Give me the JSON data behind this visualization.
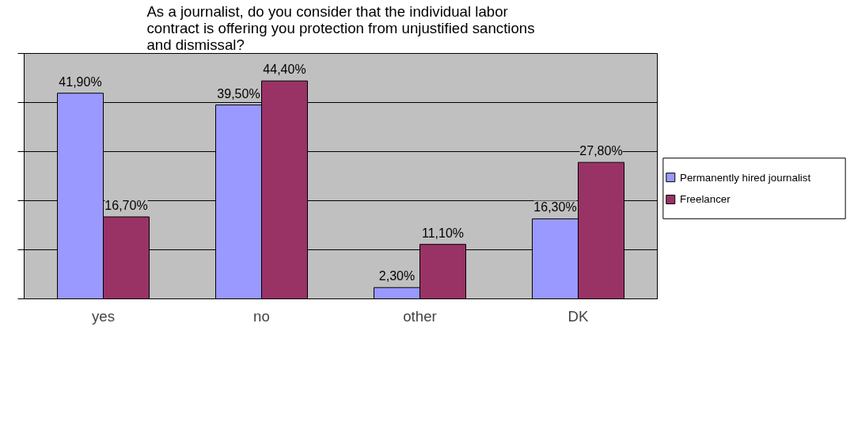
{
  "chart_data": {
    "type": "bar",
    "title": "As a journalist, do you consider that the individual labor contract is offering you protection from unjustified sanctions and dismissal?",
    "categories": [
      "yes",
      "no",
      "other",
      "DK"
    ],
    "series": [
      {
        "name": "Permanently hired journalist",
        "color": "#9999ff",
        "values": [
          41.9,
          39.5,
          2.3,
          16.3
        ],
        "value_labels": [
          "41,90%",
          "39,50%",
          "2,30%",
          "16,30%"
        ]
      },
      {
        "name": "Freelancer",
        "color": "#993366",
        "values": [
          16.7,
          44.4,
          11.1,
          27.8
        ],
        "value_labels": [
          "16,70%",
          "44,40%",
          "11,10%",
          "27,80%"
        ]
      }
    ],
    "ylim": [
      0,
      50
    ],
    "yticks": [
      {
        "value": 0,
        "label": null
      },
      {
        "value": 10,
        "label": null
      },
      {
        "value": 20,
        "label": null
      },
      {
        "value": 30,
        "label": null
      },
      {
        "value": 40,
        "label": null
      },
      {
        "value": 50,
        "label": null
      }
    ],
    "grid": "y",
    "legend": "right"
  }
}
